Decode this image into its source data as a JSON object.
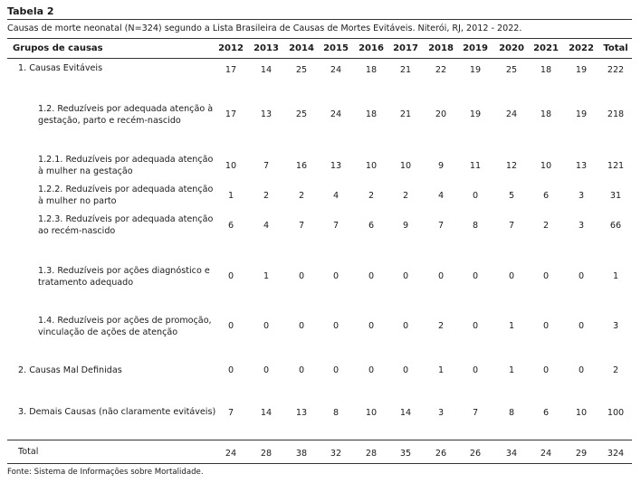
{
  "table": {
    "label": "Tabela 2",
    "subtitle": "Causas de morte neonatal (N=324) segundo a Lista Brasileira de Causas de Mortes Evitáveis. Niterói, RJ, 2012 - 2022.",
    "header_group": "Grupos de causas",
    "years": [
      "2012",
      "2013",
      "2014",
      "2015",
      "2016",
      "2017",
      "2018",
      "2019",
      "2020",
      "2021",
      "2022"
    ],
    "header_total": "Total",
    "rows": [
      {
        "label_lines": [
          "1. Causas Evitáveis"
        ],
        "values": [
          "17",
          "14",
          "25",
          "24",
          "18",
          "21",
          "22",
          "19",
          "25",
          "18",
          "19"
        ],
        "total": "222"
      },
      {
        "label_lines": [
          "1.2. Reduzíveis por adequada atenção à",
          "gestação, parto e recém-nascido"
        ],
        "values": [
          "17",
          "13",
          "25",
          "24",
          "18",
          "21",
          "20",
          "19",
          "24",
          "18",
          "19"
        ],
        "total": "218"
      },
      {
        "label_lines": [
          "1.2.1. Reduzíveis por adequada atenção",
          "à mulher na gestação"
        ],
        "values": [
          "10",
          "7",
          "16",
          "13",
          "10",
          "10",
          "9",
          "11",
          "12",
          "10",
          "13"
        ],
        "total": "121"
      },
      {
        "label_lines": [
          "1.2.2. Reduzíveis por adequada atenção",
          "à mulher no parto"
        ],
        "values": [
          "1",
          "2",
          "2",
          "4",
          "2",
          "2",
          "4",
          "0",
          "5",
          "6",
          "3"
        ],
        "total": "31"
      },
      {
        "label_lines": [
          "1.2.3. Reduzíveis por adequada atenção",
          "ao recém-nascido"
        ],
        "values": [
          "6",
          "4",
          "7",
          "7",
          "6",
          "9",
          "7",
          "8",
          "7",
          "2",
          "3"
        ],
        "total": "66"
      },
      {
        "label_lines": [
          "1.3. Reduzíveis por ações diagnóstico e",
          "tratamento adequado"
        ],
        "values": [
          "0",
          "1",
          "0",
          "0",
          "0",
          "0",
          "0",
          "0",
          "0",
          "0",
          "0"
        ],
        "total": "1"
      },
      {
        "label_lines": [
          "1.4. Reduzíveis por ações de promoção,",
          "vinculação de ações de atenção"
        ],
        "values": [
          "0",
          "0",
          "0",
          "0",
          "0",
          "0",
          "2",
          "0",
          "1",
          "0",
          "0"
        ],
        "total": "3"
      },
      {
        "label_lines": [
          "2. Causas Mal Definidas"
        ],
        "values": [
          "0",
          "0",
          "0",
          "0",
          "0",
          "0",
          "1",
          "0",
          "1",
          "0",
          "0"
        ],
        "total": "2"
      },
      {
        "label_lines": [
          "3. Demais Causas (não claramente evitáveis)"
        ],
        "values": [
          "7",
          "14",
          "13",
          "8",
          "10",
          "14",
          "3",
          "7",
          "8",
          "6",
          "10"
        ],
        "total": "100"
      },
      {
        "label_lines": [
          "Total"
        ],
        "values": [
          "24",
          "28",
          "38",
          "32",
          "28",
          "35",
          "26",
          "26",
          "34",
          "24",
          "29"
        ],
        "total": "324"
      }
    ],
    "source": "Fonte: Sistema de Informações sobre Mortalidade."
  }
}
